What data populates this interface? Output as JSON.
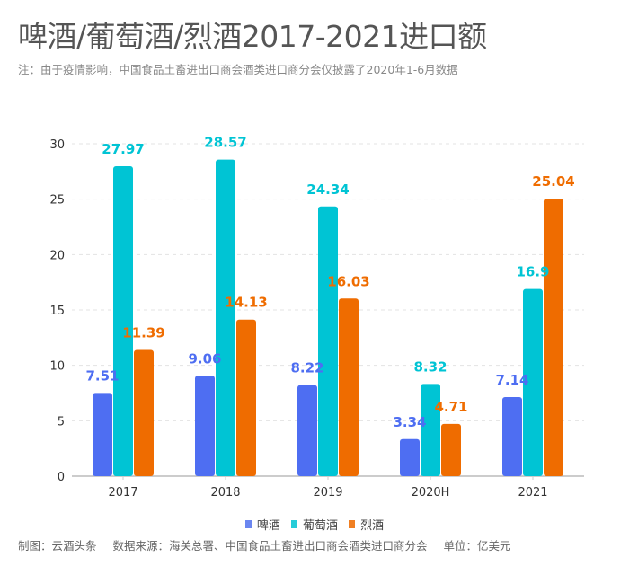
{
  "header": {
    "title": "啤酒/葡萄酒/烈酒2017-2021进口额",
    "subtitle": "注：由于疫情影响，中国食品土畜进出口商会酒类进口商分会仅披露了2020年1-6月数据"
  },
  "footer": {
    "credit": "制图：云酒头条",
    "source": "数据来源：海关总署、中国食品土畜进出口商会酒类进口商分会",
    "unit": "单位：亿美元"
  },
  "chart_data": {
    "type": "bar",
    "title": "啤酒/葡萄酒/烈酒2017-2021进口额",
    "xlabel": "",
    "ylabel": "",
    "unit": "亿美元",
    "categories": [
      "2017",
      "2018",
      "2019",
      "2020H",
      "2021"
    ],
    "series": [
      {
        "name": "啤酒",
        "color": "#4e6ef2",
        "values": [
          7.51,
          9.06,
          8.22,
          3.34,
          7.14
        ],
        "labels": [
          "7.51",
          "9.06",
          "8.22",
          "3.34",
          "7.14"
        ]
      },
      {
        "name": "葡萄酒",
        "color": "#00c4d4",
        "values": [
          27.97,
          28.57,
          24.34,
          8.32,
          16.9
        ],
        "labels": [
          "27.97",
          "28.57",
          "24.34",
          "8.32",
          "16.9"
        ]
      },
      {
        "name": "烈酒",
        "color": "#ef6c00",
        "values": [
          11.39,
          14.13,
          16.03,
          4.71,
          25.04
        ],
        "labels": [
          "11.39",
          "14.13",
          "16.03",
          "4.71",
          "25.04"
        ]
      }
    ],
    "ylim": [
      0,
      30
    ],
    "yticks": [
      "0",
      "5",
      "10",
      "15",
      "20",
      "25",
      "30"
    ],
    "ytick_values": [
      0,
      5,
      10,
      15,
      20,
      25,
      30
    ],
    "grid": true,
    "legend_position": "bottom"
  }
}
